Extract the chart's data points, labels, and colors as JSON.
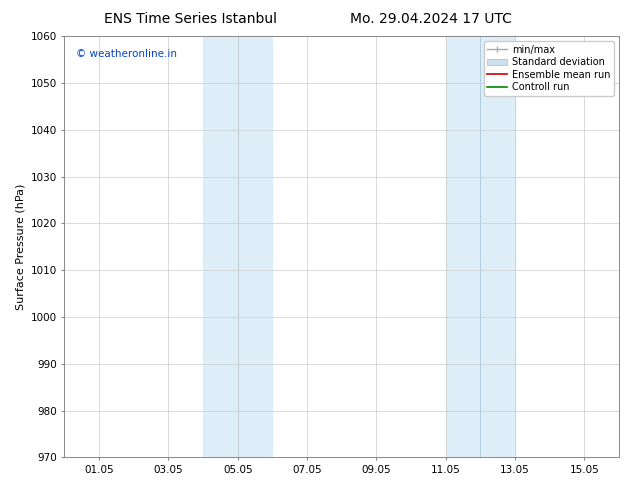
{
  "title_left": "ENS Time Series Istanbul",
  "title_right": "Mo. 29.04.2024 17 UTC",
  "ylabel": "Surface Pressure (hPa)",
  "ylim": [
    970,
    1060
  ],
  "yticks": [
    970,
    980,
    990,
    1000,
    1010,
    1020,
    1030,
    1040,
    1050,
    1060
  ],
  "xtick_labels": [
    "01.05",
    "03.05",
    "05.05",
    "07.05",
    "09.05",
    "11.05",
    "13.05",
    "15.05"
  ],
  "xtick_positions": [
    1,
    3,
    5,
    7,
    9,
    11,
    13,
    15
  ],
  "xlim": [
    0,
    16
  ],
  "watermark": "© weatheronline.in",
  "watermark_color": "#0044cc",
  "shaded_band1_a": {
    "xmin": 4.0,
    "xmax": 5.0
  },
  "shaded_band1_b": {
    "xmin": 5.0,
    "xmax": 6.0
  },
  "shaded_band2_a": {
    "xmin": 11.0,
    "xmax": 12.0
  },
  "shaded_band2_b": {
    "xmin": 12.0,
    "xmax": 13.0
  },
  "shade_color_a": "#ddeef8",
  "shade_color_b": "#ddeef8",
  "shade_divider_color": "#b0cce0",
  "legend_label_minmax": "min/max",
  "legend_label_std": "Standard deviation",
  "legend_label_ensemble": "Ensemble mean run",
  "legend_label_control": "Controll run",
  "legend_color_minmax": "#aaaaaa",
  "legend_color_std": "#cce0f0",
  "legend_color_ensemble": "#cc0000",
  "legend_color_control": "#008800",
  "bg_color": "#ffffff",
  "grid_color": "#cccccc",
  "spine_color": "#888888",
  "title_fontsize": 10,
  "axis_label_fontsize": 8,
  "tick_fontsize": 7.5,
  "legend_fontsize": 7,
  "watermark_fontsize": 7.5
}
